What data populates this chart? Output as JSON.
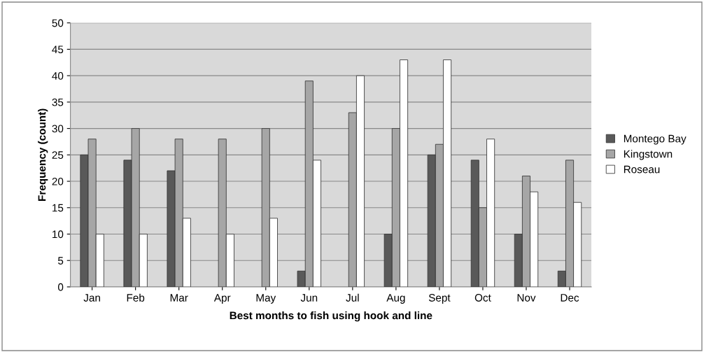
{
  "chart_data": {
    "type": "bar",
    "xlabel": "Best months to fish using hook and line",
    "ylabel": "Frequency (count)",
    "categories": [
      "Jan",
      "Feb",
      "Mar",
      "Apr",
      "May",
      "Jun",
      "Jul",
      "Aug",
      "Sept",
      "Oct",
      "Nov",
      "Dec"
    ],
    "series": [
      {
        "name": "Montego Bay",
        "color": "#595959",
        "values": [
          25,
          24,
          22,
          0,
          0,
          3,
          0,
          10,
          25,
          24,
          10,
          3
        ]
      },
      {
        "name": "Kingstown",
        "color": "#a6a6a6",
        "values": [
          28,
          30,
          28,
          28,
          30,
          39,
          33,
          30,
          27,
          15,
          21,
          24
        ]
      },
      {
        "name": "Roseau",
        "color": "#ffffff",
        "values": [
          10,
          10,
          13,
          10,
          13,
          24,
          40,
          43,
          43,
          28,
          18,
          16
        ]
      }
    ],
    "ylim": [
      0,
      50
    ],
    "yticks": [
      0,
      5,
      10,
      15,
      20,
      25,
      30,
      35,
      40,
      45,
      50
    ],
    "grid": "y",
    "legend": "right"
  }
}
